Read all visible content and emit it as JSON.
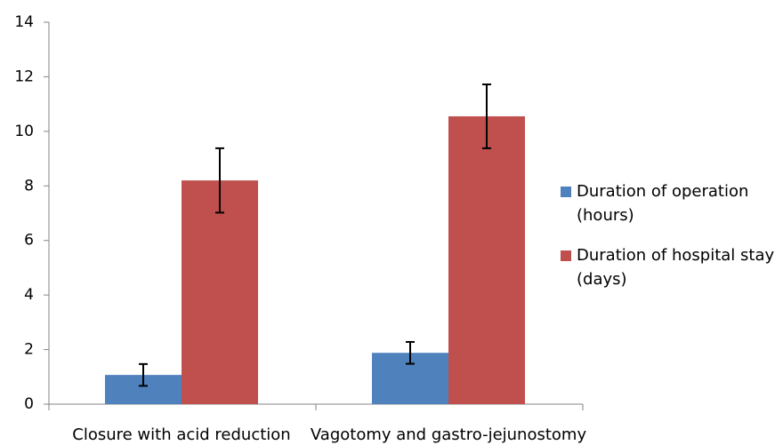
{
  "chart_data": {
    "type": "bar",
    "categories": [
      "Closure with acid reduction",
      "Vagotomy and gastro-jejunostomy"
    ],
    "series": [
      {
        "name": "Duration of operation (hours)",
        "color": "#4f81bd",
        "values": [
          1.07,
          1.88
        ],
        "errors": [
          0.4,
          0.4
        ]
      },
      {
        "name": "Duration of hospital stay (days)",
        "color": "#c0504d",
        "values": [
          8.2,
          10.55
        ],
        "errors": [
          1.18,
          1.17
        ]
      }
    ],
    "ylim": [
      0,
      14
    ],
    "yticks": [
      0,
      2,
      4,
      6,
      8,
      10,
      12,
      14
    ],
    "grid": false,
    "legend": "right"
  }
}
